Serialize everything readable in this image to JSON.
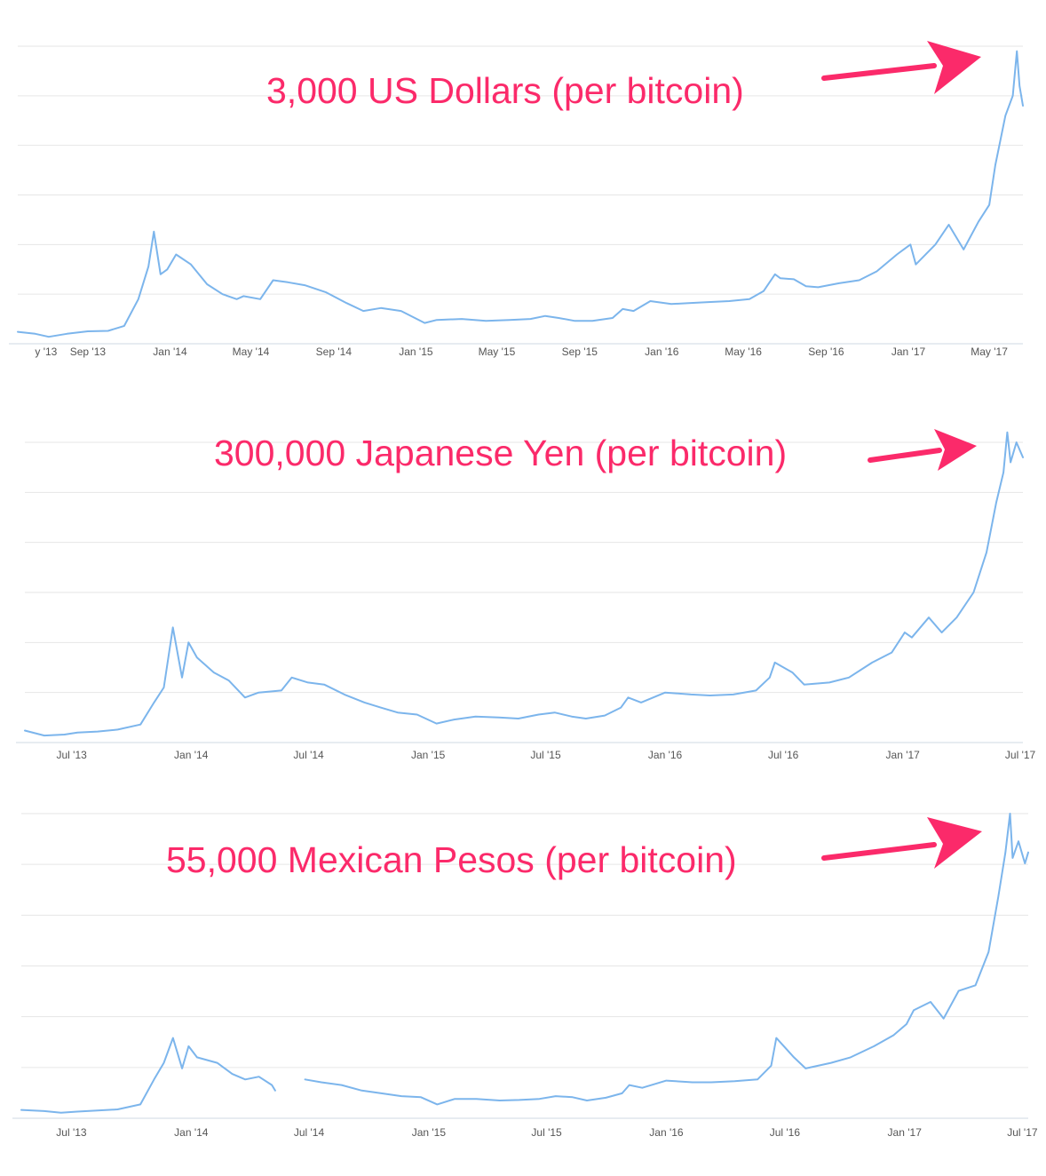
{
  "accent_color": "#fb2a6a",
  "line_color": "#7cb5ec",
  "chart_data": [
    {
      "type": "line",
      "title": "",
      "annotation": "3,000 US Dollars (per bitcoin)",
      "x_ticks": [
        "y '13",
        "Sep '13",
        "Jan '14",
        "May '14",
        "Sep '14",
        "Jan '15",
        "May '15",
        "Sep '15",
        "Jan '16",
        "May '16",
        "Sep '16",
        "Jan '17",
        "May '17"
      ],
      "xlim": [
        "2013-05-20",
        "2017-06-20"
      ],
      "ylim": [
        0,
        3000
      ],
      "grid": true,
      "series": [
        {
          "x": [
            "2013-05-20",
            "2013-06-15",
            "2013-07-05",
            "2013-08-01",
            "2013-09-01",
            "2013-10-01",
            "2013-10-25",
            "2013-11-15",
            "2013-11-30",
            "2013-12-08",
            "2013-12-18",
            "2013-12-28",
            "2014-01-10",
            "2014-02-01",
            "2014-02-25",
            "2014-03-20",
            "2014-04-10",
            "2014-04-20",
            "2014-05-15",
            "2014-06-03",
            "2014-06-25",
            "2014-07-20",
            "2014-08-20",
            "2014-09-20",
            "2014-10-15",
            "2014-11-10",
            "2014-12-10",
            "2015-01-14",
            "2015-02-01",
            "2015-03-10",
            "2015-04-15",
            "2015-05-20",
            "2015-06-20",
            "2015-07-12",
            "2015-08-01",
            "2015-08-25",
            "2015-09-20",
            "2015-10-20",
            "2015-11-04",
            "2015-11-20",
            "2015-12-15",
            "2016-01-15",
            "2016-02-10",
            "2016-03-10",
            "2016-04-10",
            "2016-05-10",
            "2016-05-31",
            "2016-06-17",
            "2016-06-25",
            "2016-07-15",
            "2016-08-02",
            "2016-08-20",
            "2016-09-20",
            "2016-10-20",
            "2016-11-15",
            "2016-12-15",
            "2017-01-04",
            "2017-01-12",
            "2017-02-10",
            "2017-03-02",
            "2017-03-24",
            "2017-04-15",
            "2017-05-01",
            "2017-05-10",
            "2017-05-25",
            "2017-06-05",
            "2017-06-11",
            "2017-06-15",
            "2017-06-20"
          ],
          "y": [
            120,
            100,
            70,
            100,
            125,
            130,
            180,
            450,
            780,
            1130,
            700,
            750,
            900,
            800,
            600,
            500,
            450,
            480,
            450,
            640,
            620,
            590,
            520,
            410,
            330,
            360,
            330,
            210,
            240,
            250,
            230,
            240,
            250,
            280,
            260,
            230,
            230,
            260,
            350,
            330,
            430,
            400,
            410,
            420,
            430,
            450,
            530,
            700,
            660,
            650,
            580,
            570,
            610,
            640,
            730,
            900,
            1000,
            800,
            1000,
            1200,
            950,
            1230,
            1400,
            1800,
            2300,
            2500,
            2950,
            2600,
            2400
          ]
        }
      ]
    },
    {
      "type": "line",
      "title": "",
      "annotation": "300,000 Japanese Yen (per bitcoin)",
      "x_ticks": [
        "Jul '13",
        "Jan '14",
        "Jul '14",
        "Jan '15",
        "Jul '15",
        "Jan '16",
        "Jul '16",
        "Jan '17",
        "Jul '17"
      ],
      "xlim": [
        "2013-04-20",
        "2017-07-05"
      ],
      "ylim": [
        0,
        300000
      ],
      "grid": true,
      "series": [
        {
          "x": [
            "2013-04-20",
            "2013-05-20",
            "2013-06-20",
            "2013-07-10",
            "2013-08-10",
            "2013-09-10",
            "2013-10-15",
            "2013-11-05",
            "2013-11-20",
            "2013-12-04",
            "2013-12-18",
            "2013-12-28",
            "2014-01-10",
            "2014-02-05",
            "2014-02-28",
            "2014-03-25",
            "2014-04-15",
            "2014-05-20",
            "2014-06-05",
            "2014-06-30",
            "2014-07-25",
            "2014-08-25",
            "2014-09-25",
            "2014-10-20",
            "2014-11-15",
            "2014-12-15",
            "2015-01-14",
            "2015-02-10",
            "2015-03-15",
            "2015-04-20",
            "2015-05-20",
            "2015-06-20",
            "2015-07-15",
            "2015-08-10",
            "2015-09-01",
            "2015-09-30",
            "2015-10-25",
            "2015-11-05",
            "2015-11-25",
            "2016-01-01",
            "2016-02-10",
            "2016-03-10",
            "2016-04-15",
            "2016-05-20",
            "2016-06-10",
            "2016-06-18",
            "2016-07-15",
            "2016-08-02",
            "2016-09-10",
            "2016-10-10",
            "2016-11-15",
            "2016-12-15",
            "2017-01-04",
            "2017-01-15",
            "2017-02-10",
            "2017-03-02",
            "2017-03-25",
            "2017-04-20",
            "2017-05-10",
            "2017-05-25",
            "2017-06-05",
            "2017-06-11",
            "2017-06-16",
            "2017-06-25",
            "2017-07-05"
          ],
          "y": [
            12000,
            7000,
            8000,
            10000,
            11000,
            13000,
            18000,
            40000,
            55000,
            115000,
            65000,
            100000,
            85000,
            70000,
            62000,
            45000,
            50000,
            52000,
            65000,
            60000,
            58000,
            48000,
            40000,
            35000,
            30000,
            28000,
            19000,
            23000,
            26000,
            25000,
            24000,
            28000,
            30000,
            26000,
            24000,
            27000,
            35000,
            45000,
            40000,
            50000,
            48000,
            47000,
            48000,
            52000,
            65000,
            80000,
            70000,
            58000,
            60000,
            65000,
            80000,
            90000,
            110000,
            105000,
            125000,
            110000,
            125000,
            150000,
            190000,
            240000,
            270000,
            310000,
            280000,
            300000,
            285000
          ]
        }
      ]
    },
    {
      "type": "line",
      "title": "",
      "annotation": "55,000 Mexican Pesos (per bitcoin)",
      "x_ticks": [
        "Jul '13",
        "Jan '14",
        "Jul '14",
        "Jan '15",
        "Jul '15",
        "Jan '16",
        "Jul '16",
        "Jan '17",
        "Jul '17"
      ],
      "xlim": [
        "2013-04-15",
        "2017-07-10"
      ],
      "ylim": [
        0,
        55000
      ],
      "grid": true,
      "series": [
        {
          "x": [
            "2013-04-15",
            "2013-05-20",
            "2013-06-15",
            "2013-07-10",
            "2013-08-10",
            "2013-09-10",
            "2013-10-15",
            "2013-11-05",
            "2013-11-20",
            "2013-12-04",
            "2013-12-18",
            "2013-12-28",
            "2014-01-10",
            "2014-02-10",
            "2014-03-05",
            "2014-03-25",
            "2014-04-15",
            "2014-05-05",
            "2014-05-10"
          ],
          "y": [
            1500,
            1300,
            1000,
            1200,
            1400,
            1600,
            2500,
            7000,
            10000,
            14500,
            9000,
            13000,
            11000,
            10000,
            8000,
            7000,
            7500,
            6000,
            5000
          ]
        },
        {
          "x": [
            "2014-06-25",
            "2014-07-20",
            "2014-08-20",
            "2014-09-20",
            "2014-10-20",
            "2014-11-20",
            "2014-12-20",
            "2015-01-14",
            "2015-02-10",
            "2015-03-15",
            "2015-04-20",
            "2015-05-20",
            "2015-06-20",
            "2015-07-15",
            "2015-08-10",
            "2015-09-01",
            "2015-09-30",
            "2015-10-25",
            "2015-11-05",
            "2015-11-25",
            "2016-01-01",
            "2016-02-10",
            "2016-03-10",
            "2016-04-15",
            "2016-05-20",
            "2016-06-10",
            "2016-06-18",
            "2016-07-15",
            "2016-08-02",
            "2016-09-10",
            "2016-10-10",
            "2016-11-15",
            "2016-12-15",
            "2017-01-04",
            "2017-01-15",
            "2017-02-10",
            "2017-03-02",
            "2017-03-25",
            "2017-04-20",
            "2017-05-10",
            "2017-05-25",
            "2017-06-05",
            "2017-06-12",
            "2017-06-16",
            "2017-06-25",
            "2017-07-05",
            "2017-07-10"
          ],
          "y": [
            7000,
            6500,
            6000,
            5000,
            4500,
            4000,
            3800,
            2500,
            3500,
            3500,
            3200,
            3300,
            3500,
            4000,
            3800,
            3200,
            3700,
            4500,
            6000,
            5500,
            6800,
            6500,
            6500,
            6700,
            7000,
            9500,
            14500,
            11000,
            9000,
            10000,
            11000,
            13000,
            15000,
            17000,
            19500,
            21000,
            18000,
            23000,
            24000,
            30000,
            40000,
            48000,
            55000,
            47000,
            50000,
            46000,
            48000
          ]
        }
      ]
    }
  ]
}
